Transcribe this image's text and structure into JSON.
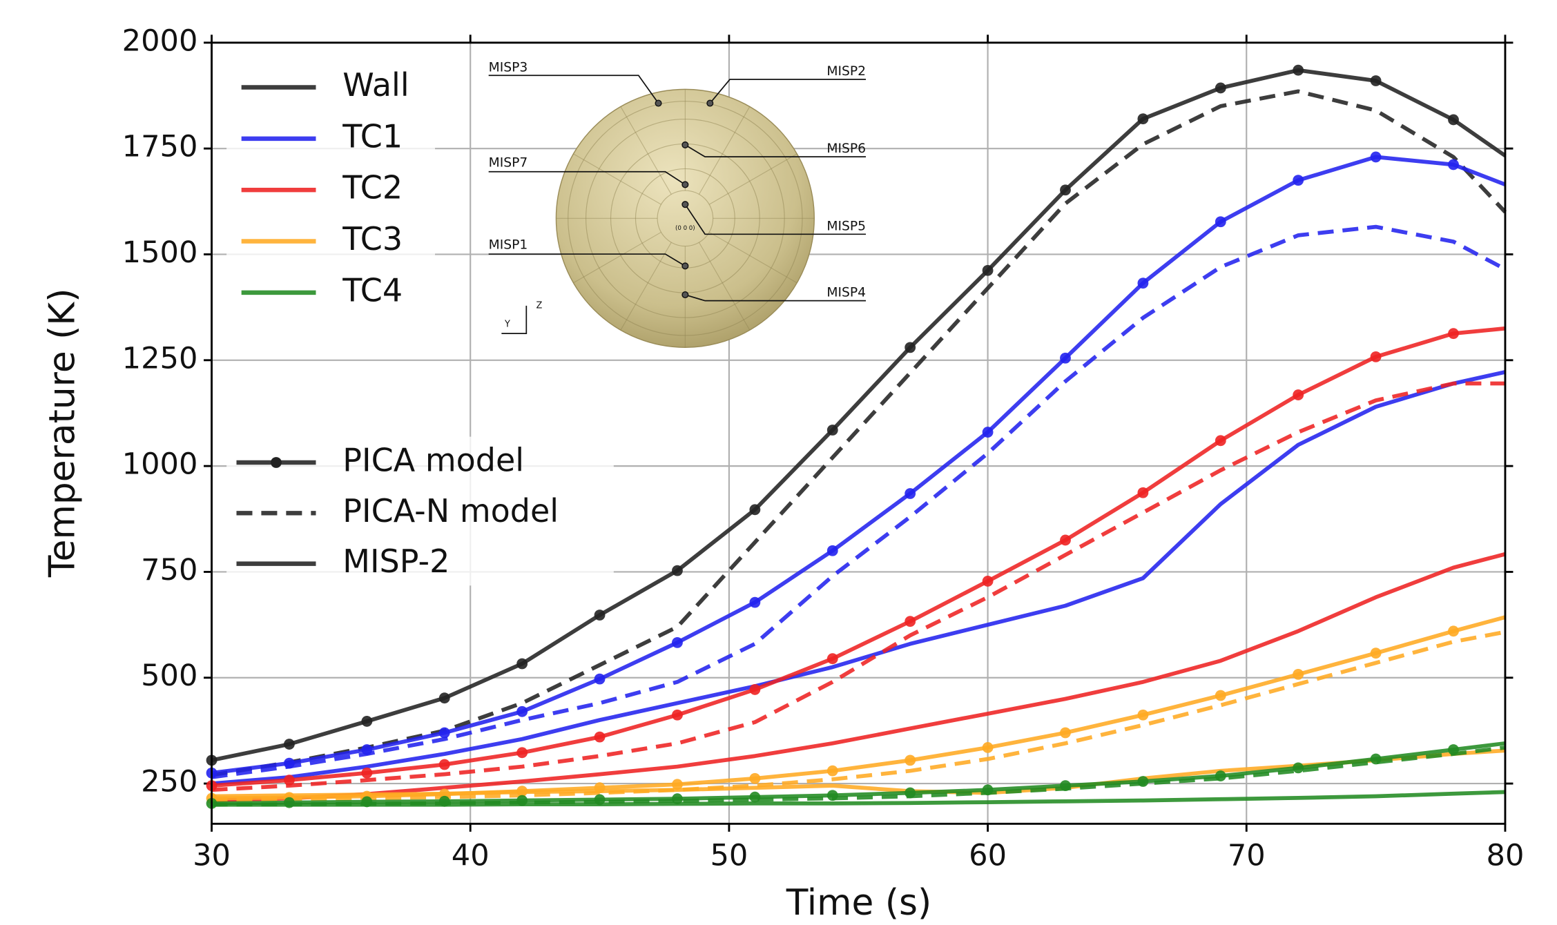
{
  "chart_data": {
    "type": "line",
    "xlabel": "Time (s)",
    "ylabel": "Temperature (K)",
    "xlim": [
      30,
      80
    ],
    "ylim": [
      155,
      2000
    ],
    "xticks": [
      30,
      40,
      50,
      60,
      70,
      80
    ],
    "yticks": [
      250,
      500,
      750,
      1000,
      1250,
      1500,
      1750,
      2000
    ],
    "grid": true,
    "x": [
      30,
      33,
      36,
      39,
      42,
      45,
      48,
      51,
      54,
      57,
      60,
      63,
      66,
      69,
      72,
      75,
      78,
      80
    ],
    "models": [
      {
        "name": "PICA model",
        "dash": "solid",
        "marker": true
      },
      {
        "name": "PICA-N model",
        "dash": "dashed",
        "marker": false
      },
      {
        "name": "MISP-2",
        "dash": "solid",
        "marker": false
      }
    ],
    "series": [
      {
        "name": "Wall",
        "color": "#222222",
        "values": [
          [
            305,
            343,
            397,
            452,
            533,
            648,
            753,
            897,
            1085,
            1280,
            1462,
            1652,
            1820,
            1893,
            1935,
            1910,
            1818,
            1733
          ],
          [
            270,
            300,
            335,
            375,
            440,
            530,
            620,
            820,
            1020,
            1220,
            1420,
            1620,
            1760,
            1850,
            1885,
            1840,
            1730,
            1600
          ],
          null
        ]
      },
      {
        "name": "TC1",
        "color": "#2222ee",
        "values": [
          [
            275,
            298,
            330,
            370,
            420,
            497,
            583,
            678,
            800,
            935,
            1080,
            1255,
            1432,
            1577,
            1675,
            1730,
            1712,
            1665
          ],
          [
            265,
            290,
            320,
            355,
            400,
            440,
            490,
            580,
            740,
            880,
            1030,
            1200,
            1350,
            1470,
            1545,
            1565,
            1530,
            1465
          ],
          [
            250,
            265,
            290,
            320,
            355,
            400,
            440,
            480,
            525,
            580,
            625,
            670,
            735,
            910,
            1050,
            1140,
            1195,
            1222
          ]
        ]
      },
      {
        "name": "TC2",
        "color": "#ee2222",
        "values": [
          [
            245,
            258,
            275,
            295,
            323,
            360,
            412,
            472,
            545,
            633,
            728,
            825,
            937,
            1060,
            1168,
            1258,
            1313,
            1325
          ],
          [
            235,
            245,
            258,
            272,
            290,
            315,
            345,
            395,
            490,
            600,
            690,
            790,
            890,
            990,
            1080,
            1155,
            1195,
            1195
          ],
          [
            210,
            215,
            225,
            240,
            255,
            272,
            290,
            315,
            345,
            380,
            415,
            450,
            490,
            540,
            610,
            690,
            760,
            792
          ]
        ]
      },
      {
        "name": "TC3",
        "color": "#ffaa22",
        "values": [
          [
            215,
            217,
            220,
            225,
            232,
            240,
            248,
            262,
            280,
            305,
            335,
            370,
            412,
            458,
            508,
            558,
            610,
            643
          ],
          [
            212,
            213,
            215,
            218,
            222,
            228,
            235,
            245,
            260,
            280,
            308,
            345,
            388,
            435,
            485,
            535,
            585,
            608
          ],
          [
            220,
            222,
            224,
            226,
            230,
            232,
            235,
            240,
            245,
            232,
            228,
            240,
            262,
            280,
            292,
            305,
            320,
            328
          ]
        ]
      },
      {
        "name": "TC4",
        "color": "#228b22",
        "values": [
          [
            203,
            205,
            207,
            208,
            210,
            212,
            214,
            218,
            222,
            228,
            235,
            245,
            255,
            268,
            287,
            308,
            330,
            345
          ],
          [
            200,
            201,
            202,
            203,
            205,
            207,
            209,
            212,
            215,
            220,
            228,
            238,
            250,
            262,
            280,
            300,
            320,
            335
          ],
          [
            200,
            200,
            200,
            200,
            201,
            201,
            202,
            203,
            203,
            204,
            206,
            208,
            210,
            213,
            216,
            220,
            226,
            230
          ]
        ]
      }
    ],
    "inset": {
      "labels": [
        "MISP3",
        "MISP2",
        "MISP6",
        "MISP7",
        "MISP5",
        "MISP1",
        "MISP4"
      ],
      "axes": [
        "Y",
        "Z"
      ],
      "origin": "(0 0 0)"
    }
  }
}
